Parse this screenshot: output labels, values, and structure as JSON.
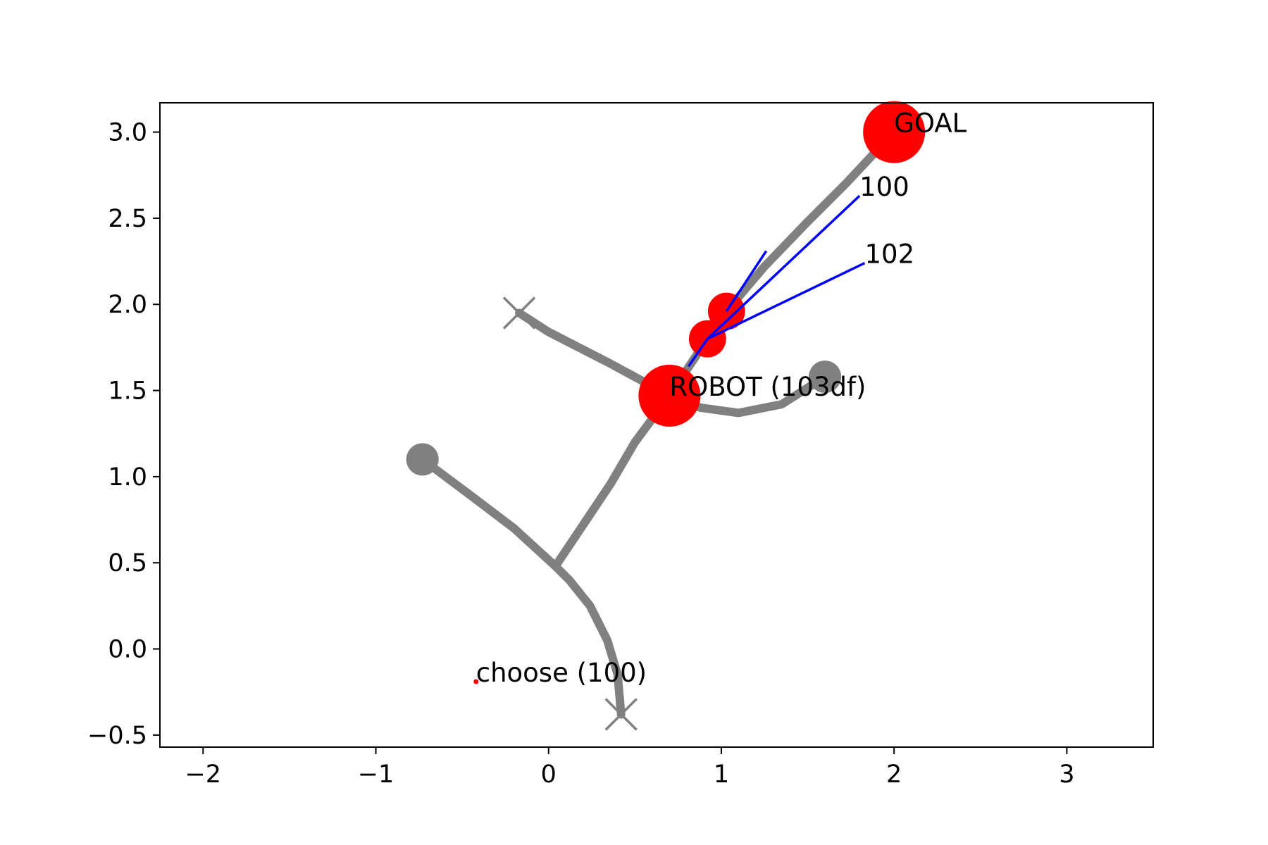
{
  "chart_data": {
    "type": "scatter",
    "title": "",
    "xlabel": "",
    "ylabel": "",
    "xlim": [
      -2.25,
      3.5
    ],
    "ylim": [
      -0.57,
      3.17
    ],
    "grid": false,
    "legend": "none",
    "x_ticks": [
      -2,
      -1,
      0,
      1,
      2,
      3
    ],
    "x_tick_labels": [
      "−2",
      "−1",
      "0",
      "1",
      "2",
      "3"
    ],
    "y_ticks": [
      -0.5,
      0.0,
      0.5,
      1.0,
      1.5,
      2.0,
      2.5,
      3.0
    ],
    "y_tick_labels": [
      "−0.5",
      "0.0",
      "0.5",
      "1.0",
      "1.5",
      "2.0",
      "2.5",
      "3.0"
    ],
    "colors": {
      "path": "#808080",
      "agent": "#ff0000",
      "ray": "#0000ff",
      "axes": "#000000"
    },
    "paths": [
      {
        "points": [
          [
            0.42,
            -0.38
          ],
          [
            0.4,
            -0.15
          ],
          [
            0.34,
            0.05
          ],
          [
            0.24,
            0.25
          ],
          [
            0.12,
            0.4
          ],
          [
            0.04,
            0.48
          ]
        ]
      },
      {
        "points": [
          [
            0.04,
            0.48
          ],
          [
            -0.2,
            0.7
          ],
          [
            -0.45,
            0.89
          ],
          [
            -0.73,
            1.1
          ]
        ]
      },
      {
        "points": [
          [
            0.04,
            0.48
          ],
          [
            0.2,
            0.72
          ],
          [
            0.36,
            0.96
          ],
          [
            0.5,
            1.2
          ],
          [
            0.7,
            1.47
          ]
        ]
      },
      {
        "points": [
          [
            0.7,
            1.47
          ],
          [
            0.35,
            1.66
          ],
          [
            0.0,
            1.84
          ],
          [
            -0.17,
            1.95
          ]
        ]
      },
      {
        "points": [
          [
            0.7,
            1.47
          ],
          [
            0.88,
            1.4
          ],
          [
            1.1,
            1.37
          ],
          [
            1.35,
            1.42
          ],
          [
            1.6,
            1.58
          ]
        ]
      },
      {
        "points": [
          [
            0.7,
            1.47
          ],
          [
            0.92,
            1.8
          ],
          [
            1.03,
            1.96
          ],
          [
            1.25,
            2.22
          ],
          [
            1.5,
            2.48
          ],
          [
            1.72,
            2.7
          ],
          [
            2.0,
            3.0
          ]
        ]
      }
    ],
    "dashed_path": {
      "points": [
        [
          1.03,
          1.96
        ],
        [
          1.3,
          2.28
        ],
        [
          1.55,
          2.52
        ],
        [
          1.75,
          2.73
        ],
        [
          2.0,
          3.0
        ]
      ]
    },
    "end_circles": [
      {
        "x": -0.73,
        "y": 1.1
      },
      {
        "x": 1.6,
        "y": 1.58
      }
    ],
    "end_crosses": [
      {
        "x": 0.42,
        "y": -0.38
      },
      {
        "x": -0.17,
        "y": 1.95
      }
    ],
    "agents": [
      {
        "x": 0.7,
        "y": 1.47,
        "size": 1.0
      },
      {
        "x": 2.0,
        "y": 3.0,
        "size": 1.0
      },
      {
        "x": 0.92,
        "y": 1.8,
        "size": 0.6
      },
      {
        "x": 1.03,
        "y": 1.96,
        "size": 0.6
      }
    ],
    "rays": [
      {
        "x1": 0.81,
        "y1": 1.64,
        "x2": 0.92,
        "y2": 1.8
      },
      {
        "x1": 1.03,
        "y1": 1.96,
        "x2": 1.26,
        "y2": 2.31
      },
      {
        "x1": 0.92,
        "y1": 1.8,
        "x2": 1.8,
        "y2": 2.63
      },
      {
        "x1": 0.92,
        "y1": 1.8,
        "x2": 1.83,
        "y2": 2.24
      }
    ],
    "point_markers": [
      {
        "x": -0.42,
        "y": -0.19,
        "color": "#ff0000"
      }
    ],
    "annotations": [
      {
        "text": "GOAL",
        "x": 2.0,
        "y": 3.0
      },
      {
        "text": "100",
        "x": 1.8,
        "y": 2.63
      },
      {
        "text": "102",
        "x": 1.83,
        "y": 2.24
      },
      {
        "text": "ROBOT (103df)",
        "x": 0.7,
        "y": 1.47
      },
      {
        "text": "choose (100)",
        "x": -0.42,
        "y": -0.19
      }
    ]
  }
}
